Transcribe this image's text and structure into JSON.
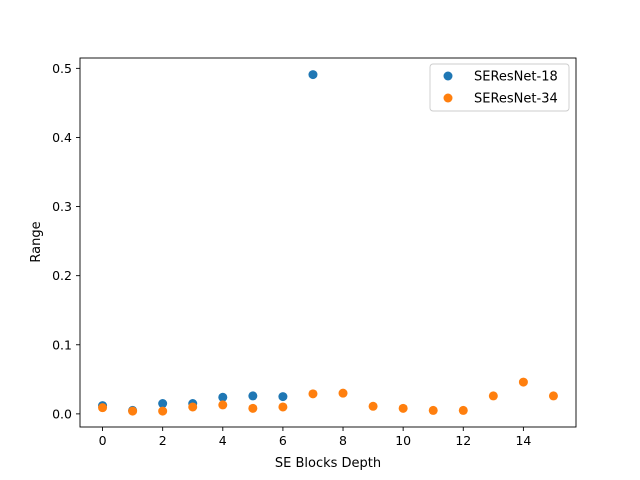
{
  "chart_data": {
    "type": "scatter",
    "title": "",
    "xlabel": "SE Blocks Depth",
    "ylabel": "Range",
    "xlim": [
      -0.75,
      15.75
    ],
    "ylim": [
      -0.019,
      0.515
    ],
    "xticks": [
      0,
      2,
      4,
      6,
      8,
      10,
      12,
      14
    ],
    "yticks": [
      0.0,
      0.1,
      0.2,
      0.3,
      0.4,
      0.5
    ],
    "ytick_labels": [
      "0.0",
      "0.1",
      "0.2",
      "0.3",
      "0.4",
      "0.5"
    ],
    "grid": false,
    "legend_position": "top-right",
    "series": [
      {
        "name": "SEResNet-18",
        "color": "#1f77b4",
        "x": [
          0,
          1,
          2,
          3,
          4,
          5,
          6,
          7
        ],
        "y": [
          0.012,
          0.005,
          0.015,
          0.015,
          0.024,
          0.026,
          0.025,
          0.491
        ]
      },
      {
        "name": "SEResNet-34",
        "color": "#ff7f0e",
        "x": [
          0,
          1,
          2,
          3,
          4,
          5,
          6,
          7,
          8,
          9,
          10,
          11,
          12,
          13,
          14,
          15
        ],
        "y": [
          0.009,
          0.004,
          0.004,
          0.01,
          0.013,
          0.008,
          0.01,
          0.029,
          0.03,
          0.011,
          0.008,
          0.005,
          0.005,
          0.026,
          0.046,
          0.026
        ]
      }
    ]
  }
}
